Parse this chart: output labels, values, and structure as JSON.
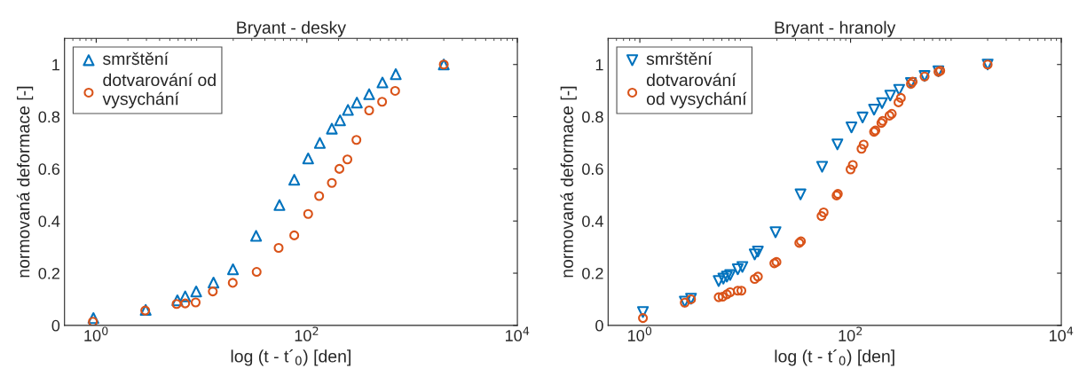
{
  "chart_data": [
    {
      "type": "scatter",
      "title": "Bryant - desky",
      "xlabel": "log (t - t´$_{0}$) [den]",
      "ylabel": "normovaná deformace [-]",
      "log": "x",
      "xlim": [
        0.5,
        10000
      ],
      "xticks": [
        {
          "value": 1,
          "label": "10$^{0}$"
        },
        {
          "value": 100,
          "label": "10$^{2}$"
        },
        {
          "value": 10000,
          "label": "10$^{4}$"
        }
      ],
      "ylim": [
        0,
        1.1
      ],
      "yticks": [
        0,
        0.2,
        0.4,
        0.6,
        0.8,
        1
      ],
      "grid": false,
      "legend": "top left",
      "series": [
        {
          "name": "smrštění",
          "color": "#0072bd",
          "marker": "triangle",
          "x": [
            0.94,
            2.95,
            5.9,
            7.0,
            8.9,
            13,
            19.9,
            33,
            55,
            76,
            103,
            133,
            173,
            207,
            246,
            299,
            391,
            523,
            700,
            2000
          ],
          "values": [
            0.028,
            0.059,
            0.096,
            0.111,
            0.13,
            0.164,
            0.215,
            0.343,
            0.461,
            0.558,
            0.64,
            0.699,
            0.754,
            0.786,
            0.826,
            0.854,
            0.886,
            0.931,
            0.963,
            1.0
          ]
        },
        {
          "name": "dotvarování od\nvysychání",
          "color": "#d95319",
          "marker": "circle",
          "x": [
            0.93,
            2.92,
            5.8,
            7.0,
            8.8,
            12.8,
            19.8,
            33.4,
            54,
            76,
            103,
            131,
            173,
            204,
            243,
            296,
            391,
            519,
            690,
            2000
          ],
          "values": [
            0.014,
            0.057,
            0.082,
            0.084,
            0.088,
            0.13,
            0.163,
            0.205,
            0.297,
            0.345,
            0.427,
            0.496,
            0.546,
            0.6,
            0.636,
            0.711,
            0.824,
            0.857,
            0.899,
            1.0
          ]
        }
      ]
    },
    {
      "type": "scatter",
      "title": "Bryant - hranoly",
      "xlabel": "log (t - t´$_{0}$) [den]",
      "ylabel": "normovaná deformace [-]",
      "log": "x",
      "xlim": [
        0.5,
        10000
      ],
      "xticks": [
        {
          "value": 1,
          "label": "10$^{0}$"
        },
        {
          "value": 100,
          "label": "10$^{2}$"
        },
        {
          "value": 10000,
          "label": "10$^{4}$"
        }
      ],
      "ylim": [
        0,
        1.1
      ],
      "yticks": [
        0,
        0.2,
        0.4,
        0.6,
        0.8,
        1
      ],
      "grid": false,
      "legend": "top left",
      "series": [
        {
          "name": "smrštění",
          "color": "#0072bd",
          "marker": "triangle_down",
          "x": [
            1.07,
            2.67,
            3.06,
            5.6,
            6.2,
            6.7,
            7.2,
            8.5,
            9.4,
            12.3,
            13.2,
            19.4,
            33.5,
            53.7,
            75,
            102,
            130,
            167,
            199,
            238,
            289,
            374,
            504,
            682,
            2000
          ],
          "values": [
            0.051,
            0.091,
            0.102,
            0.17,
            0.179,
            0.187,
            0.193,
            0.215,
            0.224,
            0.272,
            0.283,
            0.357,
            0.502,
            0.608,
            0.694,
            0.759,
            0.797,
            0.827,
            0.852,
            0.881,
            0.903,
            0.929,
            0.956,
            0.974,
            1.0
          ]
        },
        {
          "name": "dotvarování\nod vysychání",
          "color": "#d95319",
          "marker": "circle",
          "x": [
            1.07,
            2.67,
            3.06,
            5.6,
            6.1,
            6.7,
            7.2,
            8.5,
            9.2,
            12.3,
            13.2,
            18.9,
            19.8,
            32.6,
            33.8,
            53,
            55.5,
            73.7,
            75.7,
            100,
            105,
            127,
            133,
            167,
            172,
            196,
            202,
            234,
            246,
            285,
            300,
            374,
            388,
            504,
            682,
            710,
            2000
          ],
          "values": [
            0.028,
            0.087,
            0.1,
            0.108,
            0.11,
            0.119,
            0.127,
            0.133,
            0.133,
            0.178,
            0.187,
            0.238,
            0.243,
            0.316,
            0.322,
            0.419,
            0.433,
            0.498,
            0.504,
            0.598,
            0.615,
            0.677,
            0.693,
            0.742,
            0.747,
            0.776,
            0.784,
            0.804,
            0.811,
            0.855,
            0.872,
            0.926,
            0.934,
            0.954,
            0.972,
            0.976,
            1.0
          ]
        }
      ]
    }
  ]
}
